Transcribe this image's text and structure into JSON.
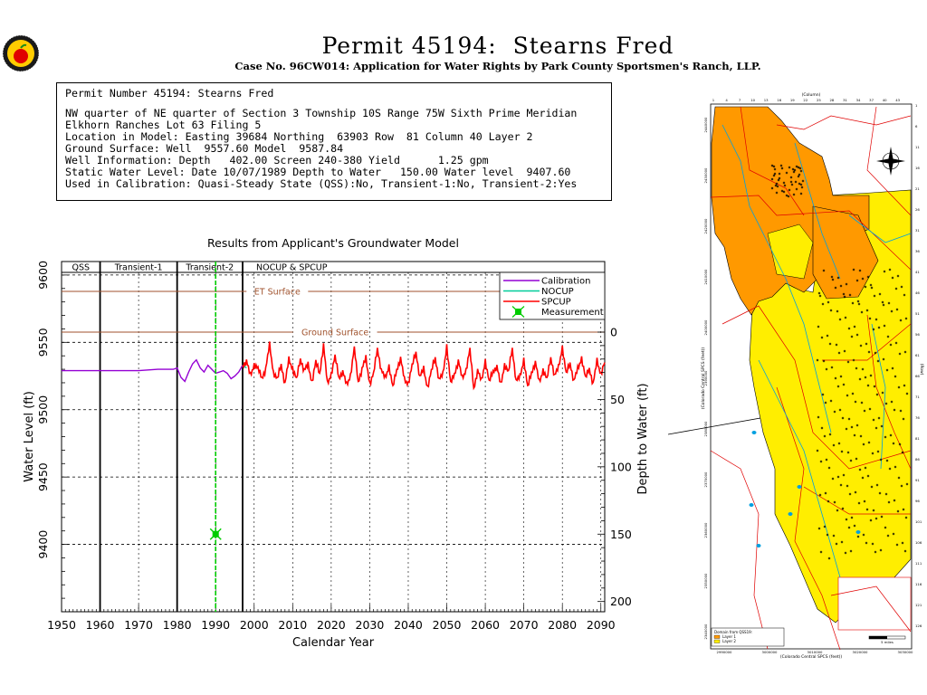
{
  "header": {
    "title": "Permit 45194:  Stearns Fred",
    "subtitle": "Case No. 96CW014: Application for Water Rights by Park County Sportsmen's Ranch, LLP."
  },
  "info": {
    "heading": "Permit Number 45194: Stearns Fred",
    "line1": "NW quarter of NE quarter of Section 3 Township 10S Range 75W Sixth Prime Meridian",
    "line2": "Elkhorn Ranches Lot 63 Filing 5",
    "line3": "Location in Model: Easting 39684 Northing  63903 Row  81 Column 40 Layer 2",
    "line4": "Ground Surface: Well  9557.60 Model  9587.84",
    "line5": "Well Information: Depth   402.00 Screen 240-380 Yield      1.25 gpm",
    "line6": "Static Water Level: Date 10/07/1989 Depth to Water   150.00 Water level  9407.60",
    "line7": "Used in Calibration: Quasi-Steady State (QSS):No, Transient-1:No, Transient-2:Yes"
  },
  "chart_data": {
    "type": "line",
    "title": "Results from Applicant's Groundwater Model",
    "xlabel": "Calendar Year",
    "ylabel": "Water Level (ft)",
    "y2label": "Depth to Water (ft)",
    "xlim": [
      1950,
      2091
    ],
    "ylim": [
      9350,
      9610
    ],
    "xticks": [
      1950,
      1960,
      1970,
      1980,
      1990,
      2000,
      2010,
      2020,
      2030,
      2040,
      2050,
      2060,
      2070,
      2080,
      2090
    ],
    "yticks": [
      9400,
      9450,
      9500,
      9550,
      9600
    ],
    "y2ticks": [
      0,
      50,
      100,
      150,
      200
    ],
    "y2_reference_elevation": 9557.6,
    "periods": [
      {
        "label": "QSS",
        "start": 1950,
        "end": 1960
      },
      {
        "label": "Transient-1",
        "start": 1960,
        "end": 1980
      },
      {
        "label": "Transient-2",
        "start": 1980,
        "end": 1997
      },
      {
        "label": "NOCUP & SPCUP",
        "start": 1997,
        "end": 2091
      }
    ],
    "reference_lines": [
      {
        "label": "ET Surface",
        "y": 9587.84,
        "color": "#a0522d"
      },
      {
        "label": "Ground Surface",
        "y": 9557.6,
        "color": "#a0522d"
      }
    ],
    "legend": [
      "Calibration",
      "NOCUP",
      "SPCUP",
      "Measurement"
    ],
    "legend_position": "top-right",
    "series": [
      {
        "name": "Calibration",
        "color": "#9400d3",
        "x": [
          1950,
          1960,
          1970,
          1975,
          1979,
          1980,
          1981,
          1982,
          1983,
          1984,
          1985,
          1986,
          1987,
          1988,
          1989,
          1990,
          1991,
          1992,
          1993,
          1994,
          1995,
          1996,
          1997
        ],
        "y": [
          9529,
          9529,
          9529,
          9530,
          9530,
          9531,
          9524,
          9521,
          9528,
          9534,
          9537,
          9531,
          9528,
          9533,
          9530,
          9527,
          9528,
          9529,
          9527,
          9523,
          9525,
          9528,
          9533
        ]
      },
      {
        "name": "NOCUP",
        "color": "#00cc99",
        "x": [
          1997,
          1998
        ],
        "y": [
          9533,
          9531
        ]
      },
      {
        "name": "SPCUP",
        "color": "#ff0000",
        "x": [
          1997,
          1998,
          1999,
          2000,
          2001,
          2002,
          2003,
          2004,
          2005,
          2006,
          2007,
          2008,
          2009,
          2010,
          2011,
          2012,
          2013,
          2014,
          2015,
          2016,
          2017,
          2018,
          2019,
          2020,
          2021,
          2022,
          2023,
          2024,
          2025,
          2026,
          2027,
          2028,
          2029,
          2030,
          2031,
          2032,
          2033,
          2034,
          2035,
          2036,
          2037,
          2038,
          2039,
          2040,
          2041,
          2042,
          2043,
          2044,
          2045,
          2046,
          2047,
          2048,
          2049,
          2050,
          2051,
          2052,
          2053,
          2054,
          2055,
          2056,
          2057,
          2058,
          2059,
          2060,
          2061,
          2062,
          2063,
          2064,
          2065,
          2066,
          2067,
          2068,
          2069,
          2070,
          2071,
          2072,
          2073,
          2074,
          2075,
          2076,
          2077,
          2078,
          2079,
          2080,
          2081,
          2082,
          2083,
          2084,
          2085,
          2086,
          2087,
          2088,
          2089,
          2090,
          2091
        ],
        "y": [
          9533,
          9536,
          9525,
          9534,
          9530,
          9524,
          9530,
          9548,
          9528,
          9522,
          9534,
          9519,
          9537,
          9531,
          9522,
          9538,
          9529,
          9533,
          9521,
          9535,
          9527,
          9548,
          9519,
          9527,
          9539,
          9524,
          9528,
          9518,
          9526,
          9545,
          9521,
          9530,
          9538,
          9520,
          9526,
          9546,
          9529,
          9523,
          9533,
          9516,
          9530,
          9538,
          9522,
          9520,
          9532,
          9543,
          9524,
          9530,
          9517,
          9528,
          9539,
          9522,
          9526,
          9548,
          9519,
          9527,
          9536,
          9523,
          9530,
          9544,
          9516,
          9529,
          9521,
          9537,
          9520,
          9529,
          9532,
          9518,
          9534,
          9527,
          9546,
          9521,
          9524,
          9538,
          9516,
          9528,
          9535,
          9520,
          9530,
          9522,
          9539,
          9525,
          9531,
          9547,
          9526,
          9535,
          9521,
          9530,
          9539,
          9523,
          9531,
          9519,
          9536,
          9527,
          9535
        ]
      },
      {
        "name": "Measurement",
        "color": "#00cc00",
        "x": [
          1990
        ],
        "y": [
          9407.6
        ]
      }
    ]
  },
  "map": {
    "row_label": "(Row)",
    "column_label": "(Column)",
    "easting_label": "(Colorado Central SPCS (feet))",
    "northing_label": "(Colorado Central SPCS (feet))",
    "legend_title": "Domain from QSS19:",
    "legend_items": [
      "Layer 1",
      "Layer 2"
    ],
    "scale_label": "5 miles",
    "x_tick_labels": [
      "2990000",
      "3000000",
      "3010000",
      "3020000",
      "3030000"
    ],
    "y_tick_labels": [
      "2340000",
      "2350000",
      "2360000",
      "2370000",
      "2380000",
      "2390000",
      "2400000",
      "2410000",
      "2420000",
      "2430000",
      "2440000"
    ],
    "colors": {
      "layer1": "#ff9900",
      "layer2": "#ffee00",
      "streams": "#00a0e0",
      "roads": "#e00000"
    }
  }
}
